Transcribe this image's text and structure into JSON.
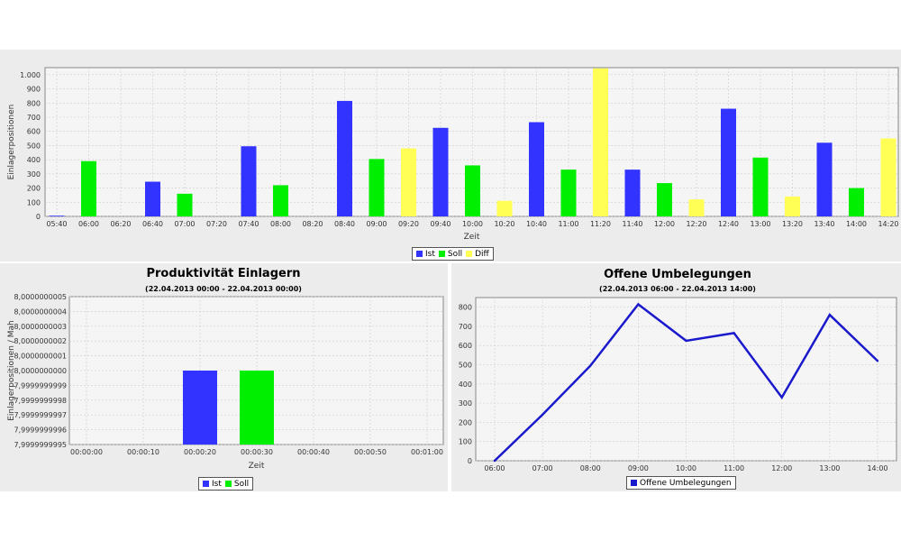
{
  "chart_data": [
    {
      "id": "top",
      "type": "bar",
      "title": "",
      "xlabel": "Zeit",
      "ylabel": "Einlagerpositionen",
      "ylim": [
        0,
        1050
      ],
      "yticks": [
        0,
        100,
        200,
        300,
        400,
        500,
        600,
        700,
        800,
        900,
        1000
      ],
      "ytick_labels": [
        "0",
        "100",
        "200",
        "300",
        "400",
        "500",
        "600",
        "700",
        "800",
        "900",
        "1.000"
      ],
      "x_tick_labels": [
        "05:40",
        "06:00",
        "06:20",
        "06:40",
        "07:00",
        "07:20",
        "07:40",
        "08:00",
        "08:20",
        "08:40",
        "09:00",
        "09:20",
        "09:40",
        "10:00",
        "10:20",
        "10:40",
        "11:00",
        "11:20",
        "11:40",
        "12:00",
        "12:20",
        "12:40",
        "13:00",
        "13:20",
        "13:40",
        "14:00",
        "14:20"
      ],
      "series": [
        {
          "name": "Ist",
          "color": "#3333ff",
          "values": [
            5,
            0,
            0,
            245,
            0,
            0,
            495,
            0,
            0,
            815,
            0,
            0,
            625,
            0,
            0,
            665,
            0,
            0,
            330,
            0,
            0,
            760,
            0,
            0,
            520,
            0,
            0
          ]
        },
        {
          "name": "Soll",
          "color": "#00ee00",
          "values": [
            0,
            390,
            0,
            0,
            160,
            0,
            0,
            220,
            0,
            0,
            405,
            0,
            0,
            360,
            0,
            0,
            330,
            0,
            0,
            235,
            0,
            0,
            415,
            0,
            0,
            200,
            0
          ]
        },
        {
          "name": "Diff",
          "color": "#ffff55",
          "values": [
            0,
            0,
            0,
            0,
            0,
            0,
            0,
            0,
            0,
            0,
            0,
            480,
            0,
            0,
            110,
            0,
            0,
            1045,
            0,
            0,
            120,
            0,
            0,
            140,
            0,
            0,
            550
          ]
        }
      ],
      "grid": true,
      "legend_position": "bottom"
    },
    {
      "id": "left",
      "type": "bar",
      "title": "Produktivität Einlagern",
      "subtitle": "(22.04.2013 00:00 - 22.04.2013 00:00)",
      "xlabel": "Zeit",
      "ylabel": "Einlagerpositionen / Mah",
      "ylim": [
        7.9999999995,
        8.0000000005
      ],
      "ytick_labels": [
        "7,9999999995",
        "7,9999999996",
        "7,9999999997",
        "7,9999999998",
        "7,9999999999",
        "8,0000000000",
        "8,0000000001",
        "8,0000000002",
        "8,0000000003",
        "8,0000000004",
        "8,0000000005"
      ],
      "x_tick_labels": [
        "00:00:00",
        "00:00:10",
        "00:00:20",
        "00:00:30",
        "00:00:40",
        "00:00:50",
        "00:01:00"
      ],
      "series": [
        {
          "name": "Ist",
          "color": "#3333ff",
          "x": "00:00:20",
          "value": 8.0
        },
        {
          "name": "Soll",
          "color": "#00ee00",
          "x": "00:00:30",
          "value": 8.0
        }
      ],
      "grid": true,
      "legend_position": "bottom"
    },
    {
      "id": "right",
      "type": "line",
      "title": "Offene Umbelegungen",
      "subtitle": "(22.04.2013 06:00 - 22.04.2013 14:00)",
      "xlabel": "",
      "ylabel": "",
      "ylim": [
        0,
        850
      ],
      "yticks": [
        0,
        100,
        200,
        300,
        400,
        500,
        600,
        700,
        800
      ],
      "x": [
        "06:00",
        "07:00",
        "08:00",
        "09:00",
        "10:00",
        "11:00",
        "12:00",
        "13:00",
        "14:00"
      ],
      "series": [
        {
          "name": "Offene Umbelegungen",
          "color": "#1a1acc",
          "values": [
            0,
            240,
            495,
            815,
            625,
            665,
            330,
            760,
            520
          ]
        }
      ],
      "grid": true,
      "legend_position": "bottom"
    }
  ]
}
